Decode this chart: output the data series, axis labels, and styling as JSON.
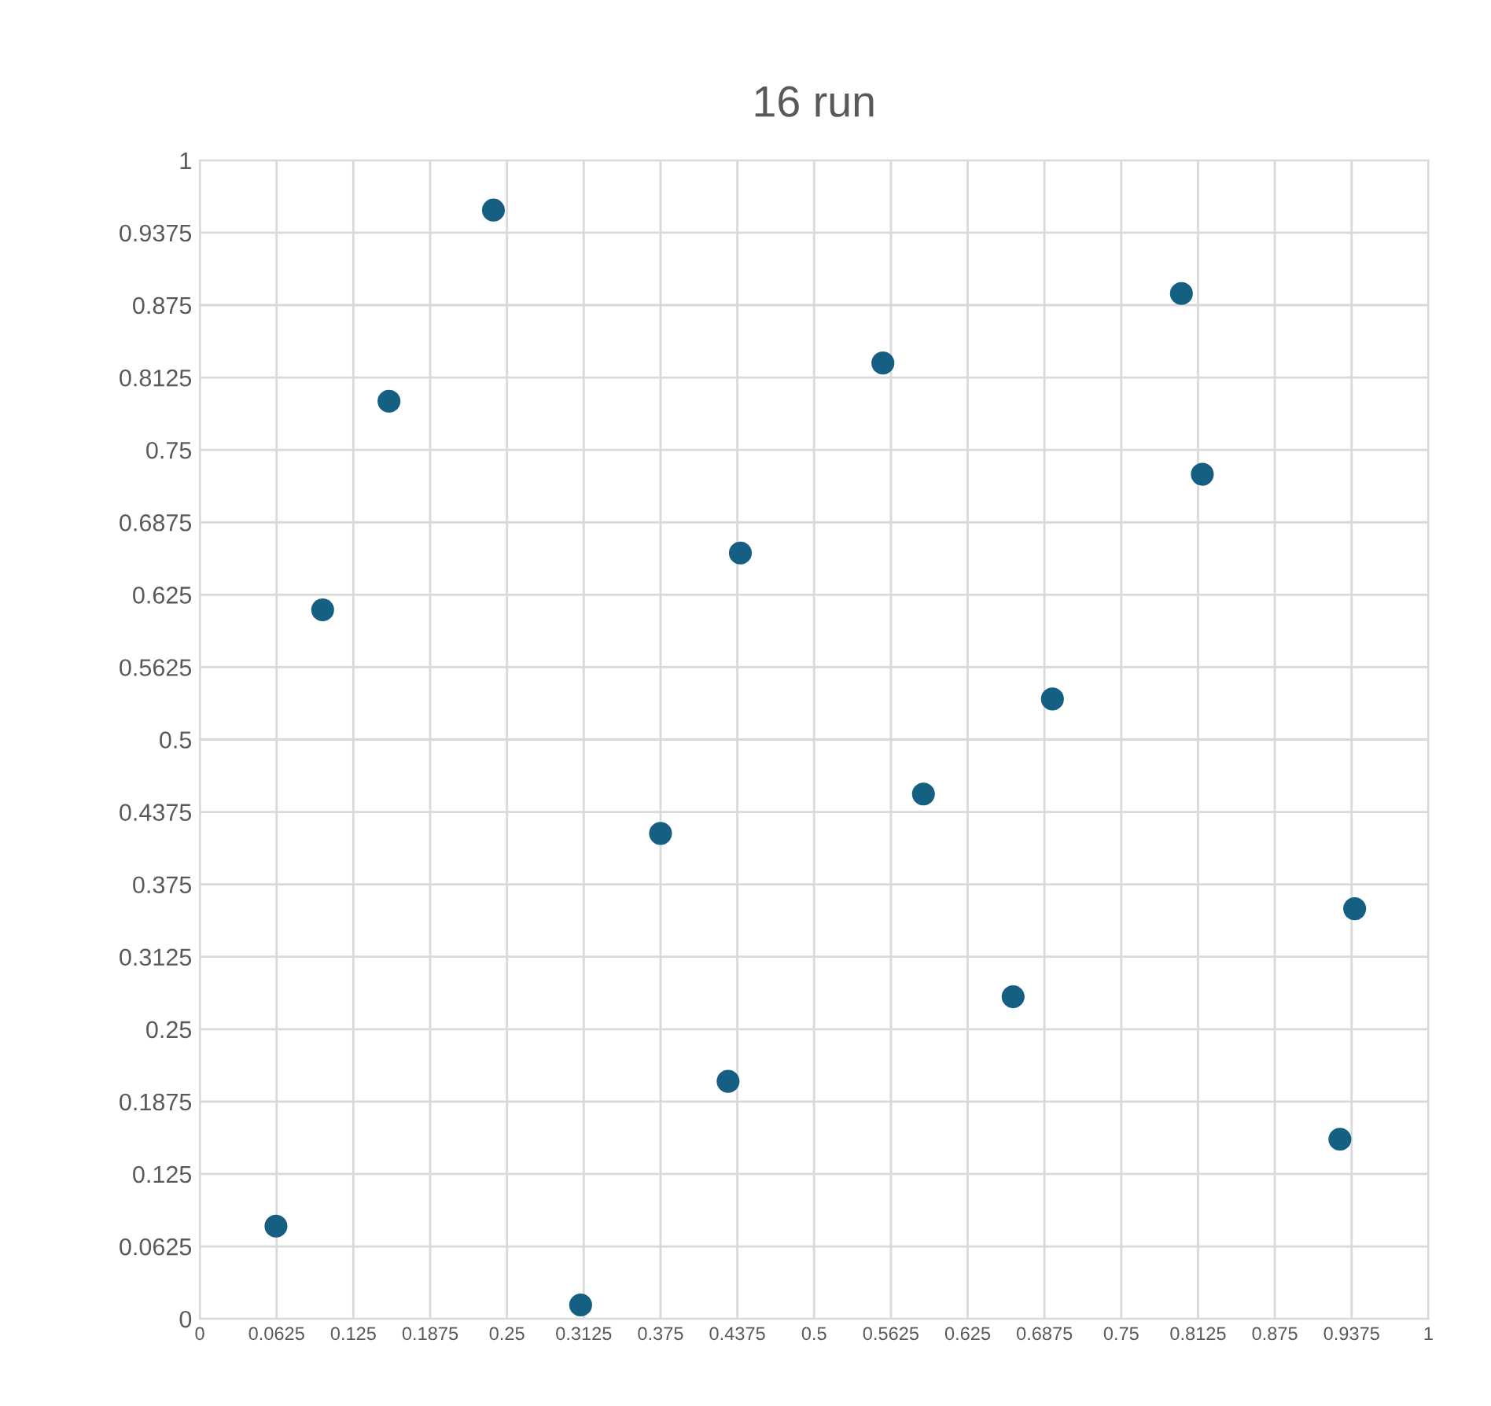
{
  "chart_data": {
    "type": "scatter",
    "title": "16 run",
    "x": [
      0.062,
      0.1,
      0.154,
      0.239,
      0.31,
      0.375,
      0.43,
      0.44,
      0.556,
      0.589,
      0.662,
      0.694,
      0.799,
      0.816,
      0.928,
      0.94
    ],
    "series": [
      {
        "color": "#156082",
        "values": [
          0.08,
          0.612,
          0.792,
          0.957,
          0.012,
          0.419,
          0.205,
          0.661,
          0.825,
          0.453,
          0.278,
          0.535,
          0.885,
          0.729,
          0.155,
          0.354
        ]
      }
    ],
    "xlim": [
      0,
      1
    ],
    "ylim": [
      0,
      1
    ],
    "xticks": [
      0,
      0.0625,
      0.125,
      0.1875,
      0.25,
      0.3125,
      0.375,
      0.4375,
      0.5,
      0.5625,
      0.625,
      0.6875,
      0.75,
      0.8125,
      0.875,
      0.9375,
      1
    ],
    "yticks": [
      0,
      0.0625,
      0.125,
      0.1875,
      0.25,
      0.3125,
      0.375,
      0.4375,
      0.5,
      0.5625,
      0.625,
      0.6875,
      0.75,
      0.8125,
      0.875,
      0.9375,
      1
    ],
    "grid": true,
    "marker": "circle",
    "legend": false
  }
}
